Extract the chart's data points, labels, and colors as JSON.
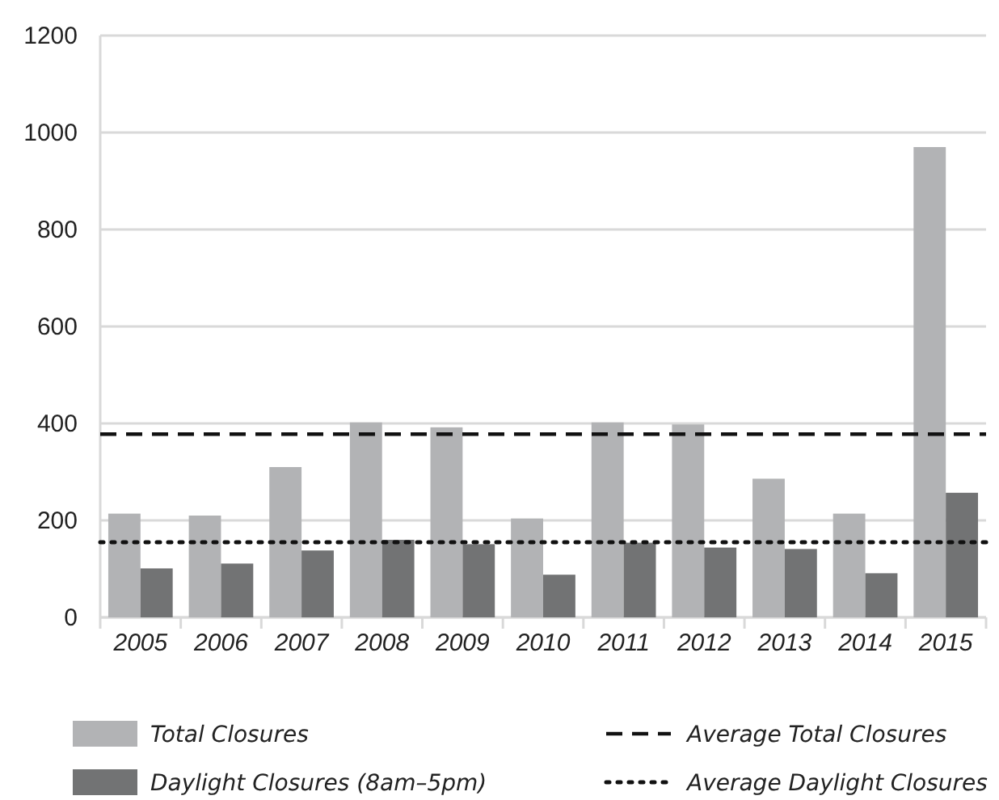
{
  "chart_data": {
    "type": "bar",
    "categories": [
      "2005",
      "2006",
      "2007",
      "2008",
      "2009",
      "2010",
      "2011",
      "2012",
      "2013",
      "2014",
      "2015"
    ],
    "series": [
      {
        "name": "Total Closures",
        "color": "#b2b3b5",
        "values": [
          214,
          210,
          310,
          402,
          392,
          204,
          402,
          398,
          286,
          214,
          970
        ]
      },
      {
        "name": "Daylight Closures (8am–5pm)",
        "color": "#727374",
        "values": [
          101,
          111,
          138,
          160,
          151,
          88,
          154,
          144,
          141,
          91,
          257
        ]
      }
    ],
    "ref_lines": [
      {
        "axis": "y",
        "value": 378,
        "label": "Average Total Closures",
        "color": "#111111",
        "line_style": "dashed"
      },
      {
        "axis": "y",
        "value": 155,
        "label": "Average Daylight Closures",
        "color": "#111111",
        "line_style": "dotted"
      }
    ],
    "ylim": [
      0,
      1200
    ],
    "yticks": [
      0,
      200,
      400,
      600,
      800,
      1000,
      1200
    ],
    "grid": "y",
    "legend": "bottom"
  }
}
